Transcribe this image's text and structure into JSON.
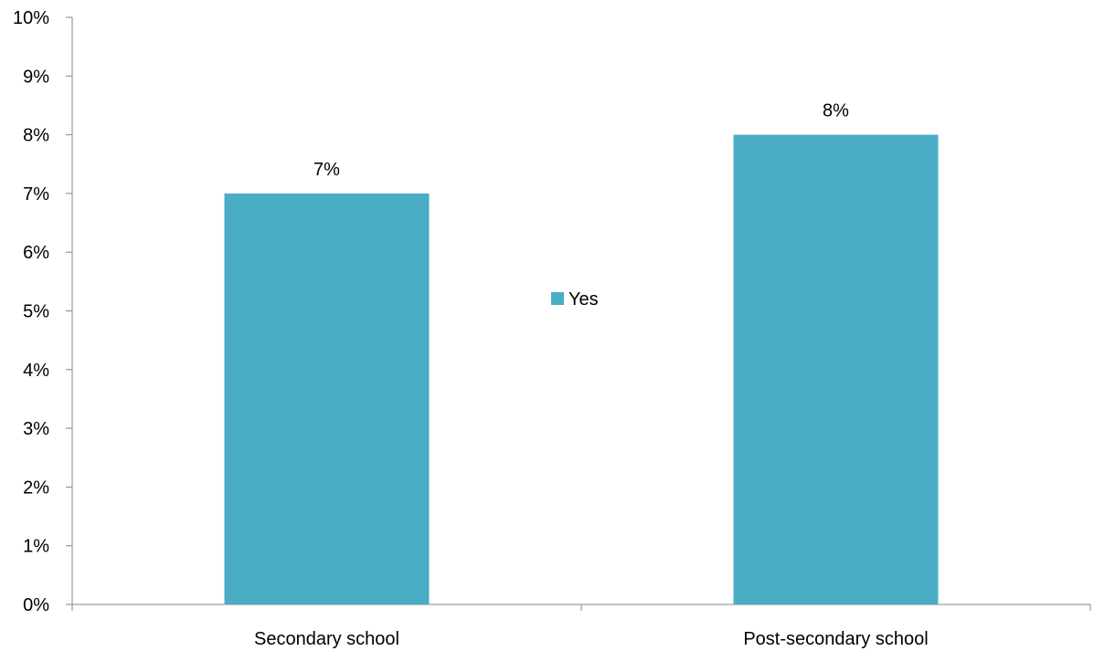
{
  "chart_data": {
    "type": "bar",
    "categories": [
      "Secondary school",
      "Post-secondary school"
    ],
    "series": [
      {
        "name": "Yes",
        "values": [
          7,
          8
        ],
        "data_labels": [
          "7%",
          "8%"
        ],
        "color": "#4BACC6"
      }
    ],
    "ylim": [
      0,
      10
    ],
    "y_ticks": [
      "0%",
      "1%",
      "2%",
      "3%",
      "4%",
      "5%",
      "6%",
      "7%",
      "8%",
      "9%",
      "10%"
    ],
    "grid": false,
    "legend": {
      "entries": [
        "Yes"
      ],
      "placement": "center"
    },
    "axis_color": "#868686"
  }
}
